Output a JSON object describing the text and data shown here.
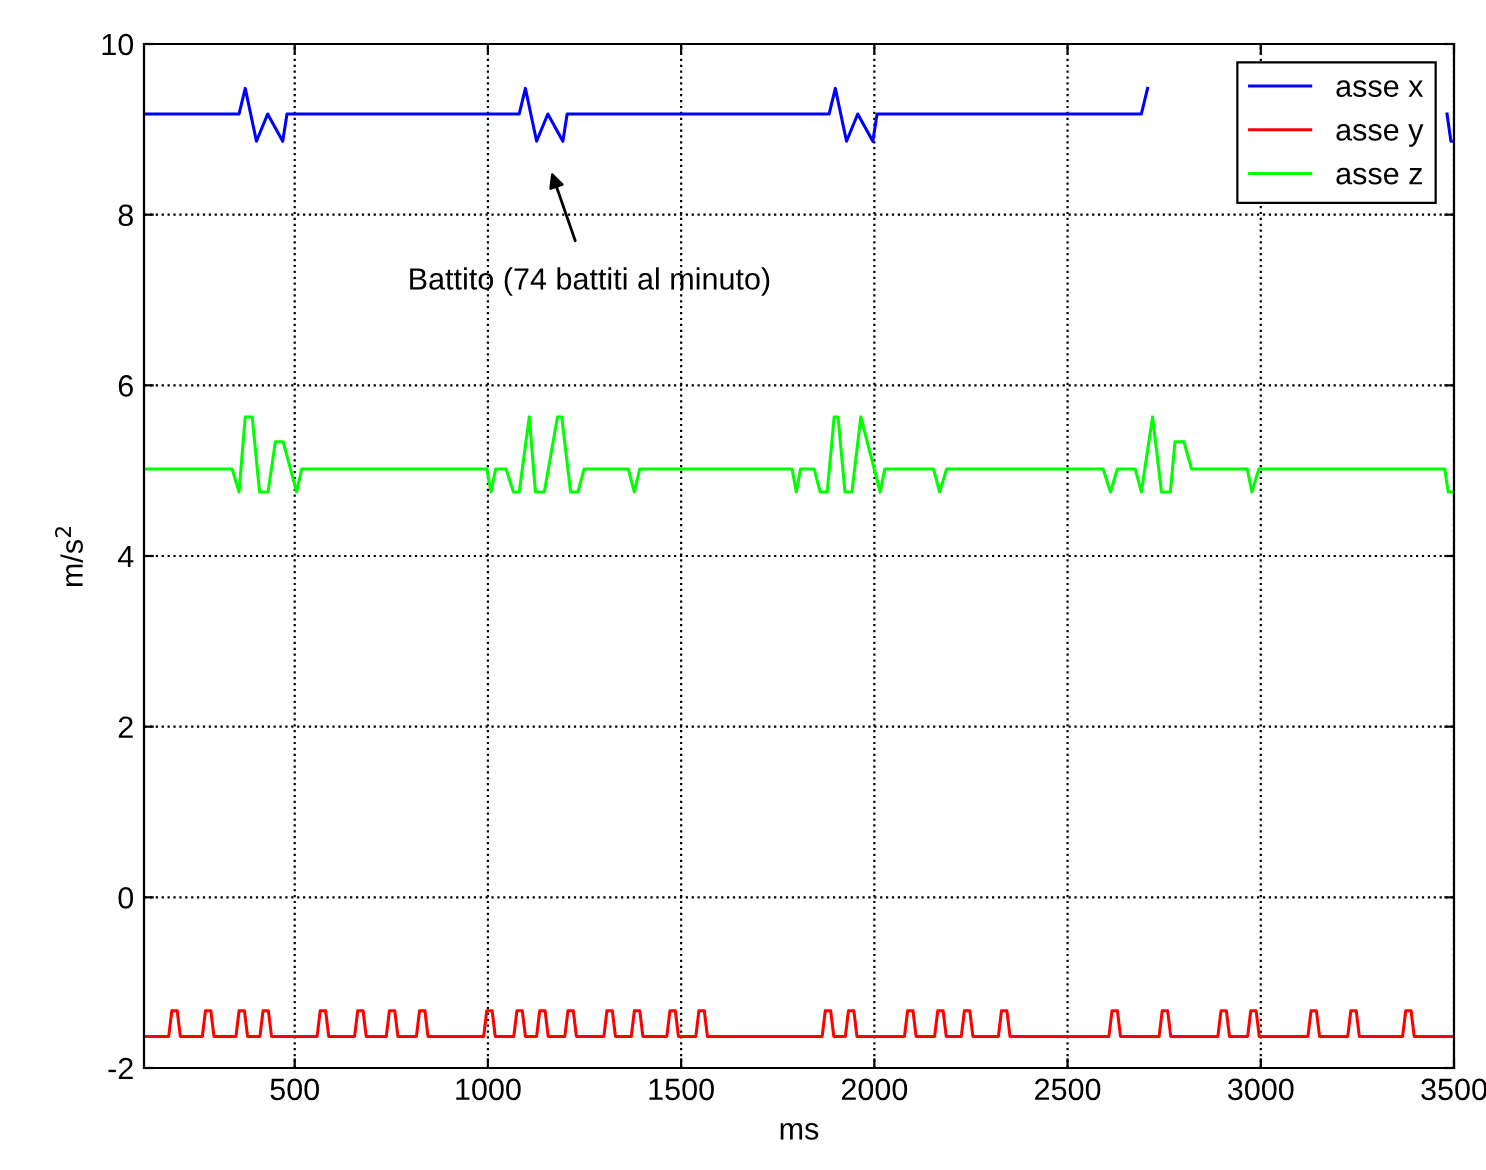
{
  "chart_data": {
    "type": "line",
    "xlabel": "ms",
    "ylabel": "m/s$^{2}$",
    "xlim": [
      110,
      3500
    ],
    "ylim": [
      -2,
      10
    ],
    "xticks": [
      500,
      1000,
      1500,
      2000,
      2500,
      3000,
      3500
    ],
    "yticks": [
      -2,
      0,
      2,
      4,
      6,
      8,
      10
    ],
    "grid": true,
    "legend": "top right",
    "line_style": "solid",
    "marker": "none",
    "annotations": [
      "Battito (74 battiti al minuto)"
    ],
    "series": [
      {
        "name": "asse x",
        "color": "#0000ff",
        "x": [
          110,
          356,
          372,
          401,
          430,
          469,
          480,
          1081,
          1097,
          1126,
          1155,
          1194,
          1205,
          1883,
          1899,
          1928,
          1957,
          1996,
          2007,
          2691,
          2707,
          2718,
          3482,
          3492,
          3500
        ],
        "values": [
          9.18,
          9.18,
          9.48,
          8.86,
          9.18,
          8.86,
          9.18,
          9.18,
          9.48,
          8.86,
          9.18,
          8.86,
          9.18,
          9.18,
          9.48,
          8.86,
          9.18,
          8.86,
          9.18,
          9.18,
          9.48,
          null,
          9.18,
          8.86,
          8.86
        ]
      },
      {
        "name": "asse y",
        "color": "#ff0000",
        "x": [
          110,
          174,
          182,
          196,
          204,
          261,
          269,
          283,
          291,
          348,
          356,
          370,
          378,
          410,
          418,
          432,
          440,
          558,
          566,
          580,
          588,
          655,
          663,
          677,
          685,
          737,
          745,
          759,
          767,
          815,
          823,
          837,
          845,
          989,
          997,
          1011,
          1019,
          1067,
          1075,
          1089,
          1097,
          1126,
          1134,
          1148,
          1156,
          1199,
          1207,
          1221,
          1229,
          1300,
          1308,
          1322,
          1330,
          1371,
          1379,
          1393,
          1401,
          1463,
          1471,
          1485,
          1493,
          1538,
          1546,
          1560,
          1568,
          1865,
          1873,
          1887,
          1895,
          1925,
          1933,
          1947,
          1955,
          2078,
          2086,
          2100,
          2108,
          2156,
          2164,
          2178,
          2186,
          2225,
          2233,
          2247,
          2255,
          2321,
          2329,
          2343,
          2351,
          2607,
          2615,
          2629,
          2637,
          2737,
          2745,
          2759,
          2767,
          2889,
          2897,
          2911,
          2919,
          2966,
          2974,
          2988,
          2996,
          3122,
          3130,
          3144,
          3152,
          3225,
          3233,
          3247,
          3255,
          3367,
          3375,
          3389,
          3397,
          3500
        ],
        "values": [
          -1.63,
          -1.63,
          -1.33,
          -1.33,
          -1.63,
          -1.63,
          -1.33,
          -1.33,
          -1.63,
          -1.63,
          -1.33,
          -1.33,
          -1.63,
          -1.63,
          -1.33,
          -1.33,
          -1.63,
          -1.63,
          -1.33,
          -1.33,
          -1.63,
          -1.63,
          -1.33,
          -1.33,
          -1.63,
          -1.63,
          -1.33,
          -1.33,
          -1.63,
          -1.63,
          -1.33,
          -1.33,
          -1.63,
          -1.63,
          -1.33,
          -1.33,
          -1.63,
          -1.63,
          -1.33,
          -1.33,
          -1.63,
          -1.63,
          -1.33,
          -1.33,
          -1.63,
          -1.63,
          -1.33,
          -1.33,
          -1.63,
          -1.63,
          -1.33,
          -1.33,
          -1.63,
          -1.63,
          -1.33,
          -1.33,
          -1.63,
          -1.63,
          -1.33,
          -1.33,
          -1.63,
          -1.63,
          -1.33,
          -1.33,
          -1.63,
          -1.63,
          -1.33,
          -1.33,
          -1.63,
          -1.63,
          -1.33,
          -1.33,
          -1.63,
          -1.63,
          -1.33,
          -1.33,
          -1.63,
          -1.63,
          -1.33,
          -1.33,
          -1.63,
          -1.63,
          -1.33,
          -1.33,
          -1.63,
          -1.63,
          -1.33,
          -1.33,
          -1.63,
          -1.63,
          -1.33,
          -1.33,
          -1.63,
          -1.63,
          -1.33,
          -1.33,
          -1.63,
          -1.63,
          -1.33,
          -1.33,
          -1.63,
          -1.63,
          -1.33,
          -1.33,
          -1.63,
          -1.63,
          -1.33,
          -1.33,
          -1.63,
          -1.63,
          -1.33,
          -1.33,
          -1.63,
          -1.63,
          -1.33,
          -1.33,
          -1.63,
          -1.63
        ]
      },
      {
        "name": "asse z",
        "color": "#00ff00",
        "x": [
          110,
          338,
          356,
          372,
          390,
          409,
          431,
          450,
          470,
          489,
          505,
          518,
          997,
          1008,
          1020,
          1047,
          1066,
          1081,
          1107,
          1123,
          1146,
          1180,
          1191,
          1214,
          1233,
          1249,
          1363,
          1379,
          1393,
          1787,
          1798,
          1809,
          1844,
          1860,
          1878,
          1896,
          1906,
          1924,
          1942,
          1965,
          2015,
          2027,
          2153,
          2169,
          2187,
          2592,
          2611,
          2629,
          2675,
          2691,
          2720,
          2743,
          2766,
          2778,
          2801,
          2821,
          2965,
          2977,
          2995,
          3476,
          3485,
          3500
        ],
        "values": [
          5.02,
          5.02,
          4.75,
          5.63,
          5.63,
          4.75,
          4.75,
          5.34,
          5.34,
          5.02,
          4.75,
          5.02,
          5.02,
          4.75,
          5.02,
          5.02,
          4.75,
          4.75,
          5.63,
          4.75,
          4.75,
          5.63,
          5.63,
          4.75,
          4.75,
          5.02,
          5.02,
          4.75,
          5.02,
          5.02,
          4.75,
          5.02,
          5.02,
          4.75,
          4.75,
          5.63,
          5.63,
          4.75,
          4.75,
          5.63,
          4.75,
          5.02,
          5.02,
          4.75,
          5.02,
          5.02,
          4.75,
          5.02,
          5.02,
          4.75,
          5.63,
          4.75,
          4.75,
          5.34,
          5.34,
          5.02,
          5.02,
          4.75,
          5.02,
          5.02,
          4.75,
          4.75
        ]
      }
    ]
  }
}
